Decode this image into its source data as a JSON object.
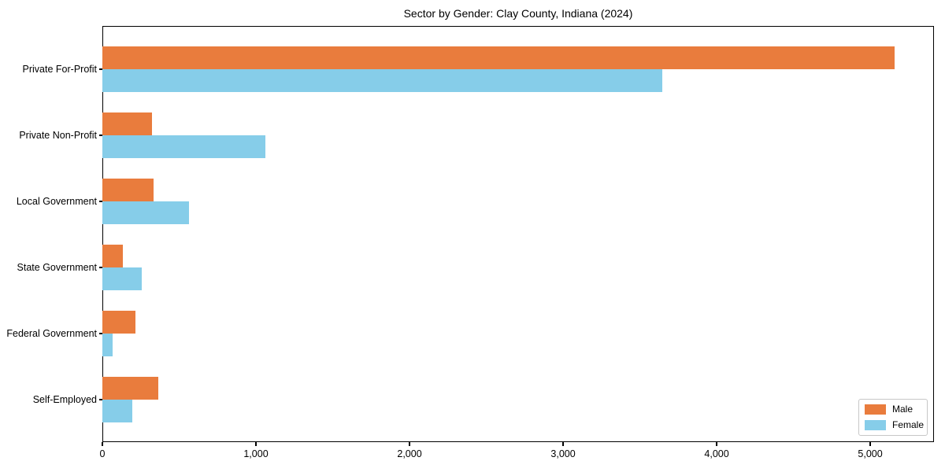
{
  "chart_data": {
    "type": "bar",
    "orientation": "horizontal",
    "title": "Sector by Gender: Clay County, Indiana (2024)",
    "xlabel": "",
    "ylabel": "",
    "categories": [
      "Private For-Profit",
      "Private Non-Profit",
      "Local Government",
      "State Government",
      "Federal Government",
      "Self-Employed"
    ],
    "series": [
      {
        "name": "Male",
        "color": "#e97c3d",
        "values": [
          5160,
          325,
          335,
          135,
          215,
          365
        ]
      },
      {
        "name": "Female",
        "color": "#86cde9",
        "values": [
          3645,
          1060,
          565,
          255,
          65,
          195
        ]
      }
    ],
    "xlim": [
      0,
      5415
    ],
    "xticks": [
      0,
      1000,
      2000,
      3000,
      4000,
      5000
    ],
    "xtick_labels": [
      "0",
      "1,000",
      "2,000",
      "3,000",
      "4,000",
      "5,000"
    ],
    "grid": false,
    "legend_position": "lower right",
    "legend_labels": [
      "Male",
      "Female"
    ]
  },
  "colors": {
    "axis": "#000000",
    "legend_border": "#c7c7c7",
    "background": "#ffffff",
    "male": "#e97c3d",
    "female": "#86cde9"
  }
}
